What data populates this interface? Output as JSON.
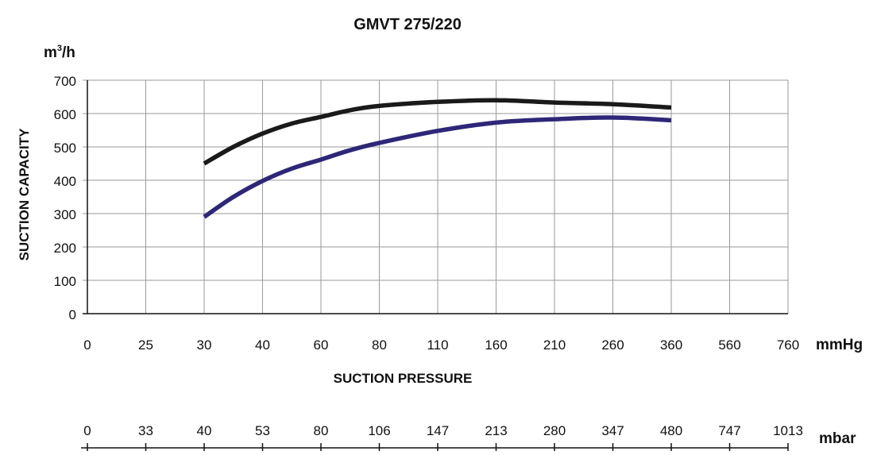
{
  "chart_data": {
    "type": "line",
    "title": "GMVT 275/220",
    "y_unit_base": "m",
    "y_unit_exp": "3",
    "y_unit_rest": "/h",
    "ylabel": "SUCTION CAPACITY",
    "xlabel": "SUCTION PRESSURE",
    "x_unit": "mmHg",
    "x2_unit": "mbar",
    "categories": [
      "0",
      "25",
      "30",
      "40",
      "60",
      "80",
      "110",
      "160",
      "210",
      "260",
      "360",
      "560",
      "760"
    ],
    "secondary_categories": [
      "0",
      "33",
      "40",
      "53",
      "80",
      "106",
      "147",
      "213",
      "280",
      "347",
      "480",
      "747",
      "1013"
    ],
    "ylim": [
      0,
      700
    ],
    "yticks": [
      "0",
      "100",
      "200",
      "300",
      "400",
      "500",
      "600",
      "700"
    ],
    "grid": true,
    "series": [
      {
        "color": "#1a1a1a",
        "x": [
          2,
          2.5,
          3,
          3.5,
          4,
          4.5,
          5,
          6,
          7,
          8,
          9,
          10
        ],
        "values": [
          450,
          500,
          540,
          570,
          590,
          610,
          623,
          635,
          640,
          633,
          628,
          618
        ]
      },
      {
        "color": "#2e2778",
        "x": [
          2,
          2.5,
          3,
          3.5,
          4,
          4.5,
          5,
          6,
          7,
          8,
          9,
          10
        ],
        "values": [
          290,
          350,
          398,
          435,
          462,
          490,
          512,
          548,
          573,
          583,
          588,
          580
        ]
      }
    ]
  }
}
